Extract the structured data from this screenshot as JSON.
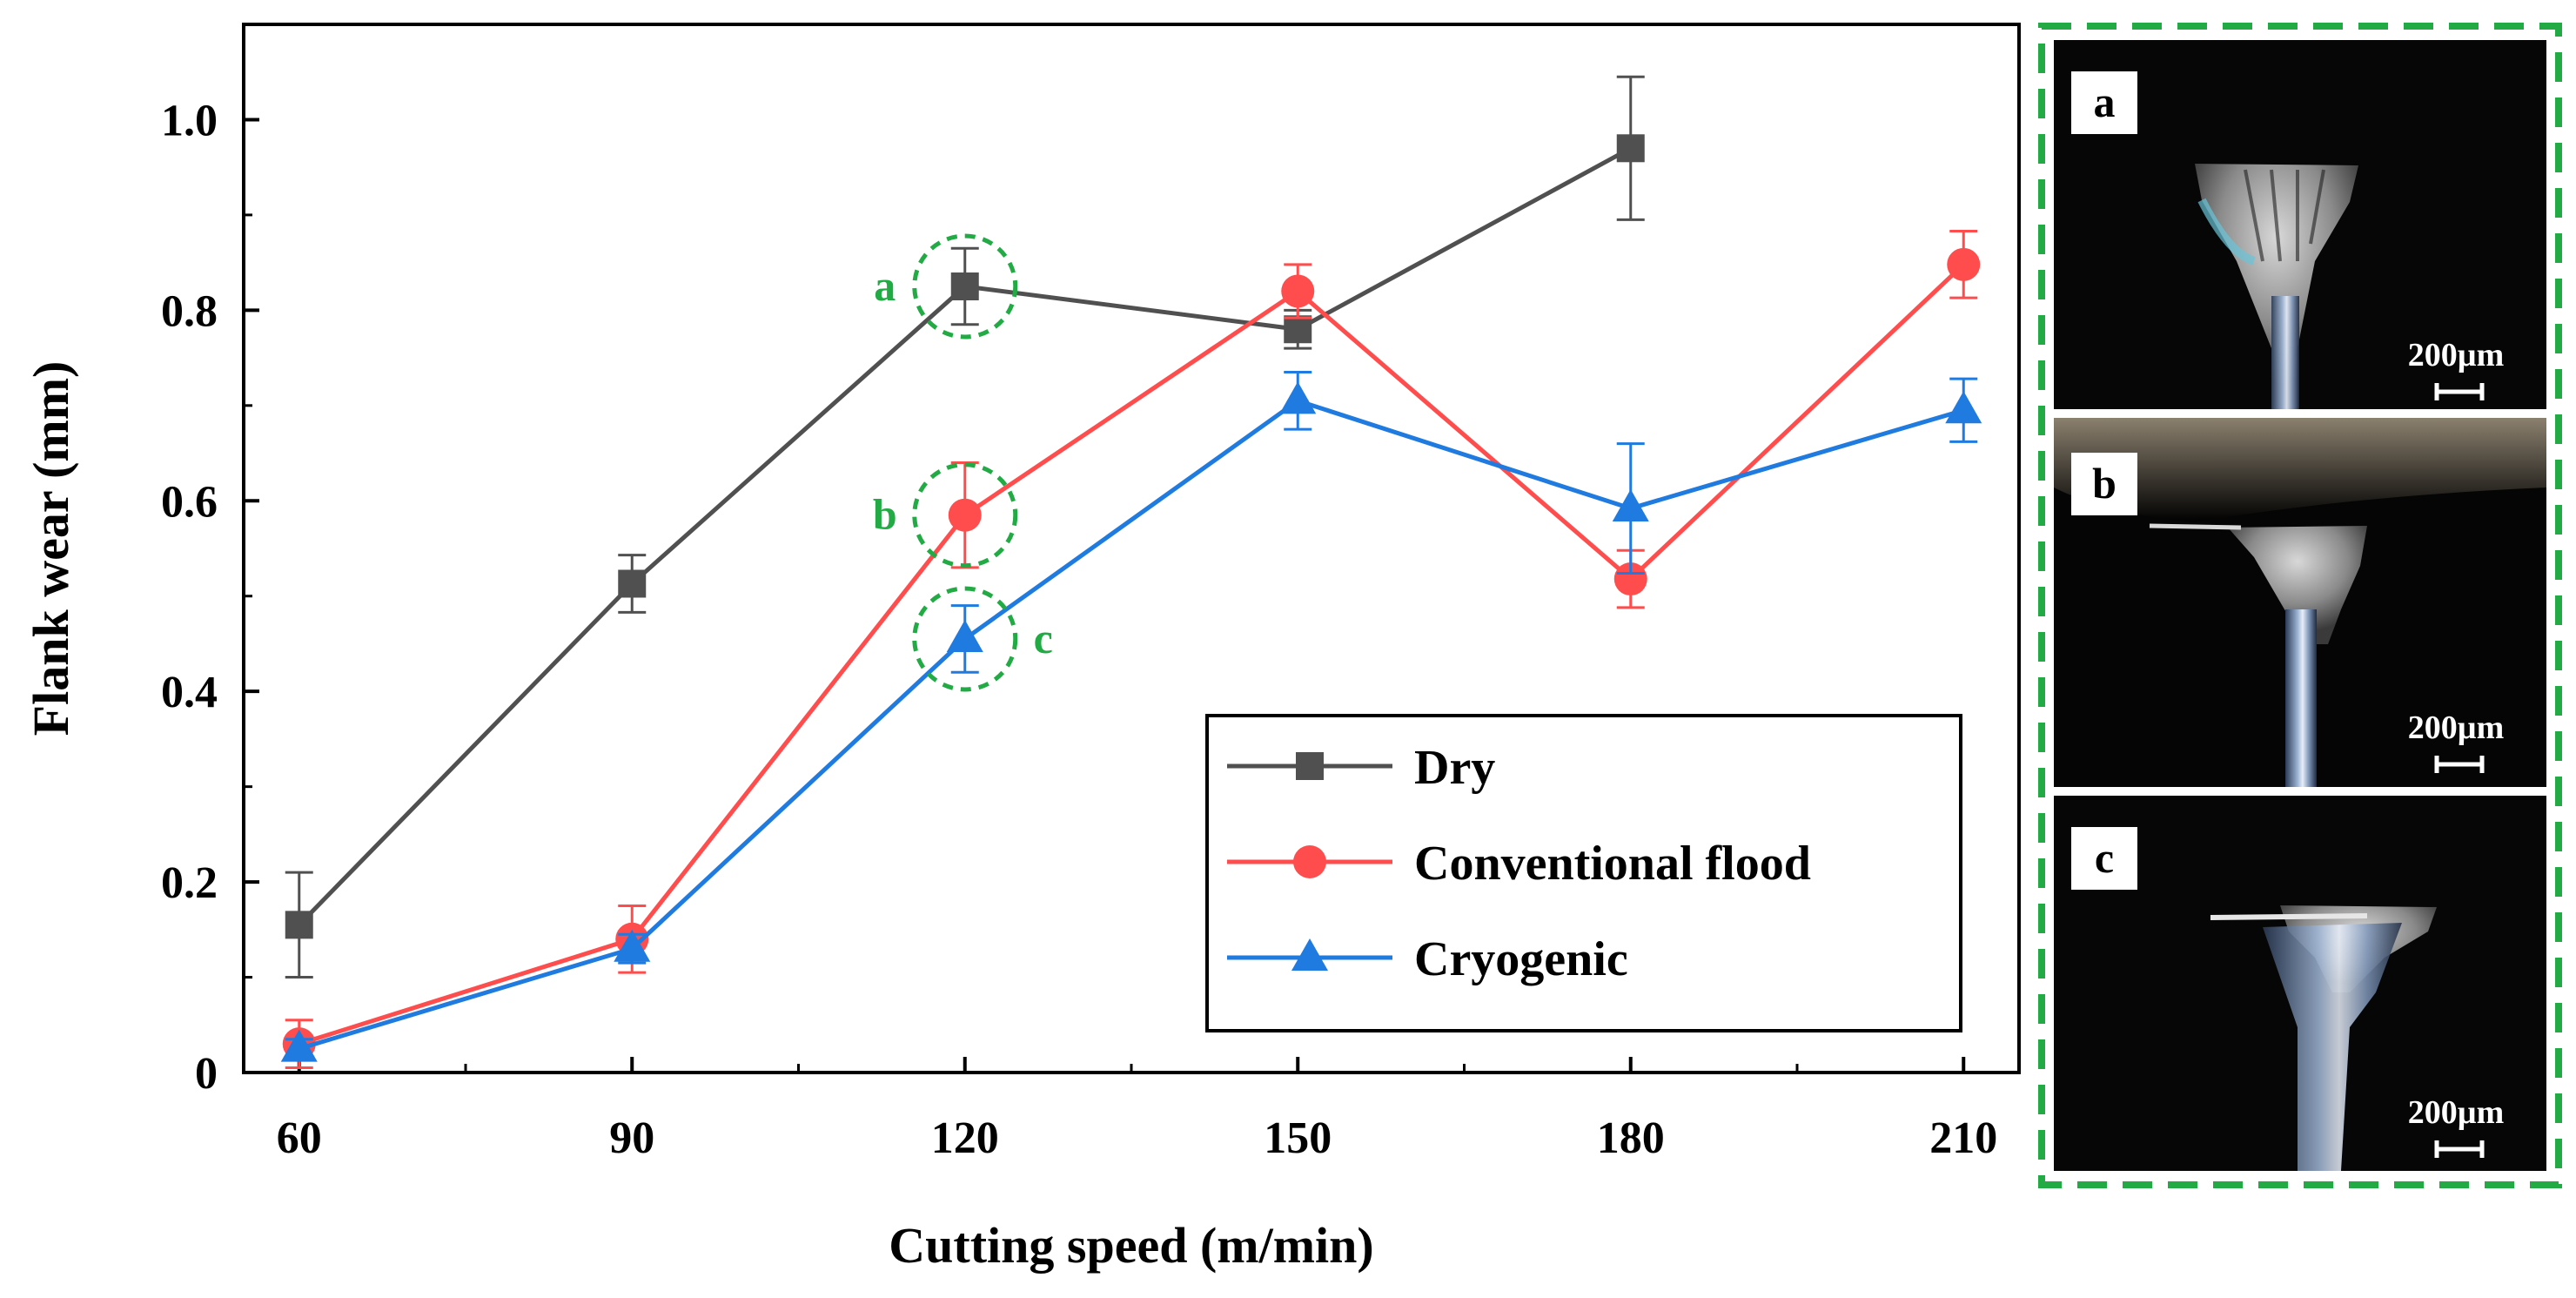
{
  "chart_data": {
    "type": "line",
    "xlabel": "Cutting speed (m/min)",
    "ylabel": "Flank wear (mm)",
    "x": [
      60,
      90,
      120,
      150,
      180,
      210
    ],
    "xlim": [
      55,
      215
    ],
    "ylim": [
      0,
      1.1
    ],
    "xticks": [
      60,
      90,
      120,
      150,
      180,
      210
    ],
    "yticks": [
      0,
      0.2,
      0.4,
      0.6,
      0.8,
      1.0
    ],
    "ytick_labels": [
      "0",
      "0.2",
      "0.4",
      "0.6",
      "0.8",
      "1.0"
    ],
    "legend_position": "bottom-right",
    "series": [
      {
        "name": "Dry",
        "color": "#505050",
        "marker": "square",
        "x": [
          60,
          90,
          120,
          150,
          180
        ],
        "values": [
          0.155,
          0.513,
          0.825,
          0.78,
          0.97
        ],
        "errors": [
          0.055,
          0.03,
          0.04,
          0.02,
          0.075
        ]
      },
      {
        "name": "Conventional flood",
        "color": "#ff4d4d",
        "marker": "circle",
        "x": [
          60,
          90,
          120,
          150,
          180,
          210
        ],
        "values": [
          0.03,
          0.14,
          0.585,
          0.82,
          0.518,
          0.848
        ],
        "errors": [
          0.025,
          0.035,
          0.055,
          0.028,
          0.03,
          0.035
        ]
      },
      {
        "name": "Cryogenic",
        "color": "#1f7be0",
        "marker": "triangle",
        "x": [
          60,
          90,
          120,
          150,
          180,
          210
        ],
        "values": [
          0.025,
          0.13,
          0.455,
          0.705,
          0.592,
          0.695
        ],
        "errors": [
          0.01,
          0.015,
          0.035,
          0.03,
          0.068,
          0.033
        ]
      }
    ],
    "annotations": [
      {
        "label": "a",
        "series": "Dry",
        "x": 120,
        "y": 0.825,
        "side": "left"
      },
      {
        "label": "b",
        "series": "Conventional flood",
        "x": 120,
        "y": 0.585,
        "side": "left"
      },
      {
        "label": "c",
        "series": "Cryogenic",
        "x": 120,
        "y": 0.455,
        "side": "right"
      }
    ]
  },
  "micrographs": {
    "panel_color": "#22aa44",
    "items": [
      {
        "label": "a",
        "scale_bar": "200µm"
      },
      {
        "label": "b",
        "scale_bar": "200µm"
      },
      {
        "label": "c",
        "scale_bar": "200µm"
      }
    ]
  }
}
